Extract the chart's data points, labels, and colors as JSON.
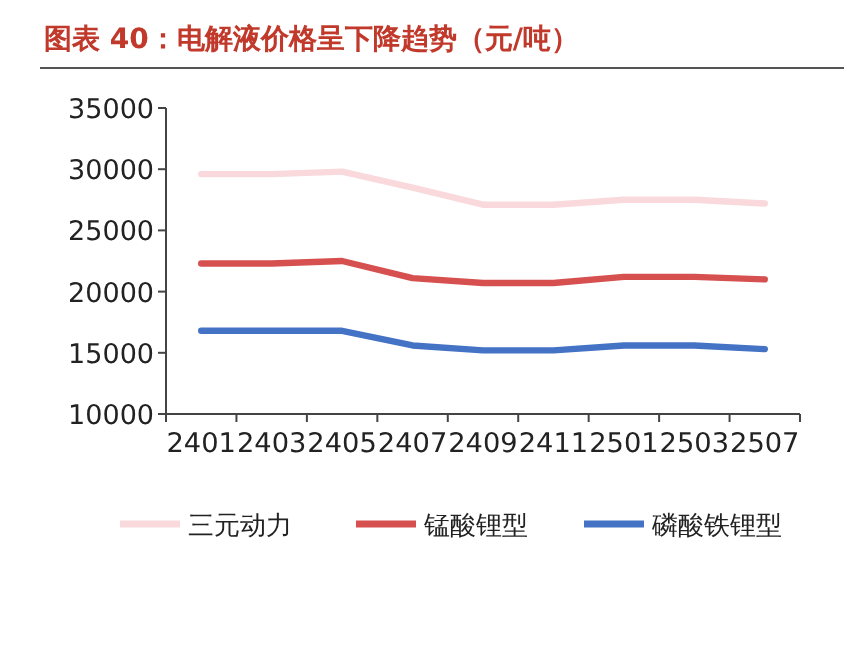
{
  "chart_data": {
    "type": "line",
    "title": "图表 40：电解液价格呈下降趋势（元/吨）",
    "categories": [
      "2401",
      "2403",
      "2405",
      "2407",
      "2409",
      "2411",
      "2501",
      "2503",
      "2507"
    ],
    "series": [
      {
        "name": "三元动力",
        "color": "#f9d9dc",
        "values": [
          29600,
          29600,
          29800,
          28500,
          27100,
          27100,
          27500,
          27500,
          27200
        ]
      },
      {
        "name": "锰酸锂型",
        "color": "#d6504f",
        "values": [
          22300,
          22300,
          22500,
          21100,
          20700,
          20700,
          21200,
          21200,
          21000
        ]
      },
      {
        "name": "磷酸铁锂型",
        "color": "#4472c4",
        "values": [
          16800,
          16800,
          16800,
          15600,
          15200,
          15200,
          15600,
          15600,
          15300
        ]
      }
    ],
    "ylim": [
      10000,
      35000
    ],
    "yticks": [
      10000,
      15000,
      20000,
      25000,
      30000,
      35000
    ],
    "legend": "bottom",
    "grid": false,
    "marker": "none",
    "line_style": "solid"
  }
}
